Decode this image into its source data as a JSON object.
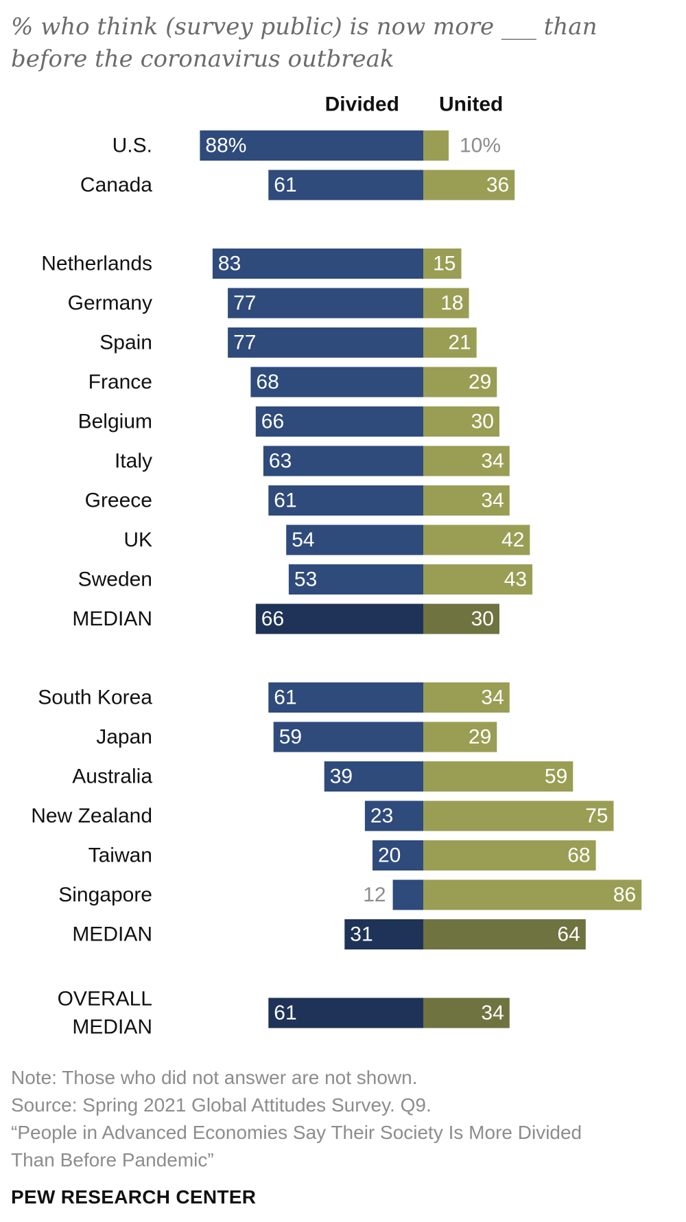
{
  "chart_data": {
    "type": "bar",
    "title": "% who think (survey public) is now more ___ than before the coronavirus outbreak",
    "legend": [
      "Divided",
      "United"
    ],
    "colors": {
      "divided": "#2f4b7c",
      "united": "#999e54",
      "divided_median": "#1f3358",
      "united_median": "#6e7340",
      "outside_label": "#8c8c8c"
    },
    "groups": [
      {
        "rows": [
          {
            "label": "U.S.",
            "divided": 88,
            "united": 10,
            "divided_text": "88%",
            "united_text": "10%"
          },
          {
            "label": "Canada",
            "divided": 61,
            "united": 36,
            "divided_text": "61",
            "united_text": "36"
          }
        ]
      },
      {
        "rows": [
          {
            "label": "Netherlands",
            "divided": 83,
            "united": 15,
            "divided_text": "83",
            "united_text": "15"
          },
          {
            "label": "Germany",
            "divided": 77,
            "united": 18,
            "divided_text": "77",
            "united_text": "18"
          },
          {
            "label": "Spain",
            "divided": 77,
            "united": 21,
            "divided_text": "77",
            "united_text": "21"
          },
          {
            "label": "France",
            "divided": 68,
            "united": 29,
            "divided_text": "68",
            "united_text": "29"
          },
          {
            "label": "Belgium",
            "divided": 66,
            "united": 30,
            "divided_text": "66",
            "united_text": "30"
          },
          {
            "label": "Italy",
            "divided": 63,
            "united": 34,
            "divided_text": "63",
            "united_text": "34"
          },
          {
            "label": "Greece",
            "divided": 61,
            "united": 34,
            "divided_text": "61",
            "united_text": "34"
          },
          {
            "label": "UK",
            "divided": 54,
            "united": 42,
            "divided_text": "54",
            "united_text": "42"
          },
          {
            "label": "Sweden",
            "divided": 53,
            "united": 43,
            "divided_text": "53",
            "united_text": "43"
          },
          {
            "label": "MEDIAN",
            "divided": 66,
            "united": 30,
            "divided_text": "66",
            "united_text": "30",
            "median": true
          }
        ]
      },
      {
        "rows": [
          {
            "label": "South Korea",
            "divided": 61,
            "united": 34,
            "divided_text": "61",
            "united_text": "34"
          },
          {
            "label": "Japan",
            "divided": 59,
            "united": 29,
            "divided_text": "59",
            "united_text": "29"
          },
          {
            "label": "Australia",
            "divided": 39,
            "united": 59,
            "divided_text": "39",
            "united_text": "59"
          },
          {
            "label": "New Zealand",
            "divided": 23,
            "united": 75,
            "divided_text": "23",
            "united_text": "75"
          },
          {
            "label": "Taiwan",
            "divided": 20,
            "united": 68,
            "divided_text": "20",
            "united_text": "68"
          },
          {
            "label": "Singapore",
            "divided": 12,
            "united": 86,
            "divided_text": "12",
            "united_text": "86"
          },
          {
            "label": "MEDIAN",
            "divided": 31,
            "united": 64,
            "divided_text": "31",
            "united_text": "64",
            "median": true
          }
        ]
      },
      {
        "rows": [
          {
            "label": [
              "OVERALL",
              "MEDIAN"
            ],
            "divided": 61,
            "united": 34,
            "divided_text": "61",
            "united_text": "34",
            "median": true
          }
        ]
      }
    ]
  },
  "title_text": "% who think (survey public) is now more ___ than before the coronavirus outbreak",
  "footer": {
    "note": "Note: Those who did not answer are not shown.",
    "source": "Source: Spring 2021 Global Attitudes Survey. Q9.",
    "report_line1": "“People in Advanced Economies Say Their Society Is More Divided",
    "report_line2": "Than Before Pandemic”"
  },
  "brand": "PEW RESEARCH CENTER"
}
